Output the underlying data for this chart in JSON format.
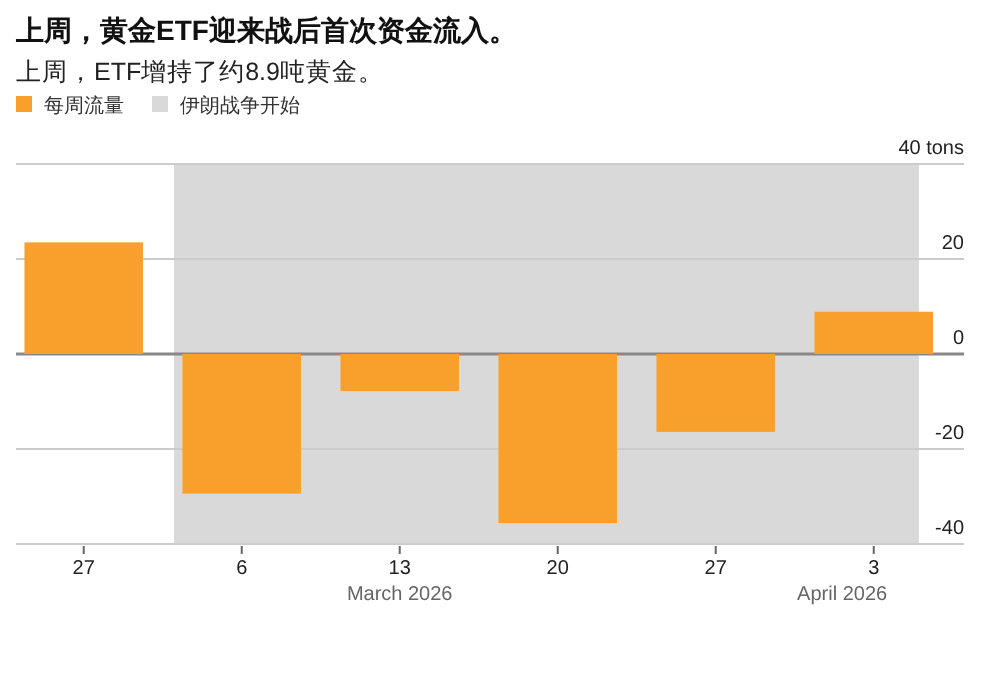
{
  "chart_data": {
    "type": "bar",
    "title": "上周，黄金ETF迎来战后首次资金流入。",
    "subtitle": "上周，ETF增持了约8.9吨黄金。",
    "x": [
      "2026-02-27",
      "2026-03-06",
      "2026-03-13",
      "2026-03-20",
      "2026-03-27",
      "2026-04-03"
    ],
    "series": [
      {
        "name": "每周流量",
        "color": "#f9a02c",
        "values": [
          23.5,
          -29.4,
          -7.8,
          -35.6,
          -16.4,
          8.9
        ]
      }
    ],
    "xlim": [
      "2026-02-24",
      "2026-04-07"
    ],
    "xticks": [
      {
        "value": "2026-02-27",
        "label": "27"
      },
      {
        "value": "2026-03-06",
        "label": "6"
      },
      {
        "value": "2026-03-13",
        "label": "13"
      },
      {
        "value": "2026-03-20",
        "label": "20"
      },
      {
        "value": "2026-03-27",
        "label": "27"
      },
      {
        "value": "2026-04-03",
        "label": "3"
      }
    ],
    "ylim": [
      -40,
      40
    ],
    "yticks": [
      {
        "value": 40,
        "label": "40 tons"
      },
      20,
      0,
      -20,
      -40
    ],
    "bands": [
      {
        "axis": "x",
        "from": "2026-03-03",
        "to": "2026-04-05",
        "label": "伊朗战争开始",
        "color": "#d9d9d9"
      }
    ],
    "annotations": [
      "March 2026",
      "April 2026"
    ],
    "grid": "y",
    "legend": "top left"
  }
}
